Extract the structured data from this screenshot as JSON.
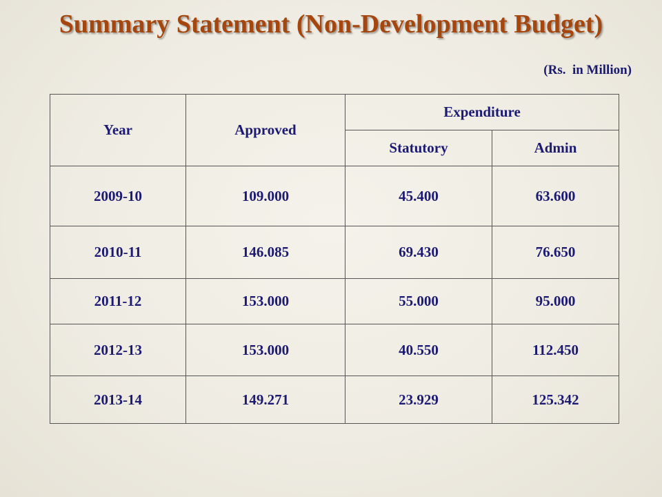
{
  "slide": {
    "title": "Summary Statement (Non-Development Budget)",
    "units_note": "(Rs.  in Million)"
  },
  "table": {
    "headers": {
      "year": "Year",
      "approved": "Approved",
      "expenditure": "Expenditure",
      "statutory": "Statutory",
      "admin": "Admin"
    },
    "rows": [
      {
        "year": "2009-10",
        "approved": "109.000",
        "statutory": "45.400",
        "admin": "63.600"
      },
      {
        "year": "2010-11",
        "approved": "146.085",
        "statutory": "69.430",
        "admin": "76.650"
      },
      {
        "year": "2011-12",
        "approved": "153.000",
        "statutory": "55.000",
        "admin": "95.000"
      },
      {
        "year": "2012-13",
        "approved": "153.000",
        "statutory": "40.550",
        "admin": "112.450"
      },
      {
        "year": "2013-14",
        "approved": "149.271",
        "statutory": "23.929",
        "admin": "125.342"
      }
    ]
  },
  "colors": {
    "title": "#a4460e",
    "table_text": "#1c1a72",
    "background": "#efece3"
  }
}
